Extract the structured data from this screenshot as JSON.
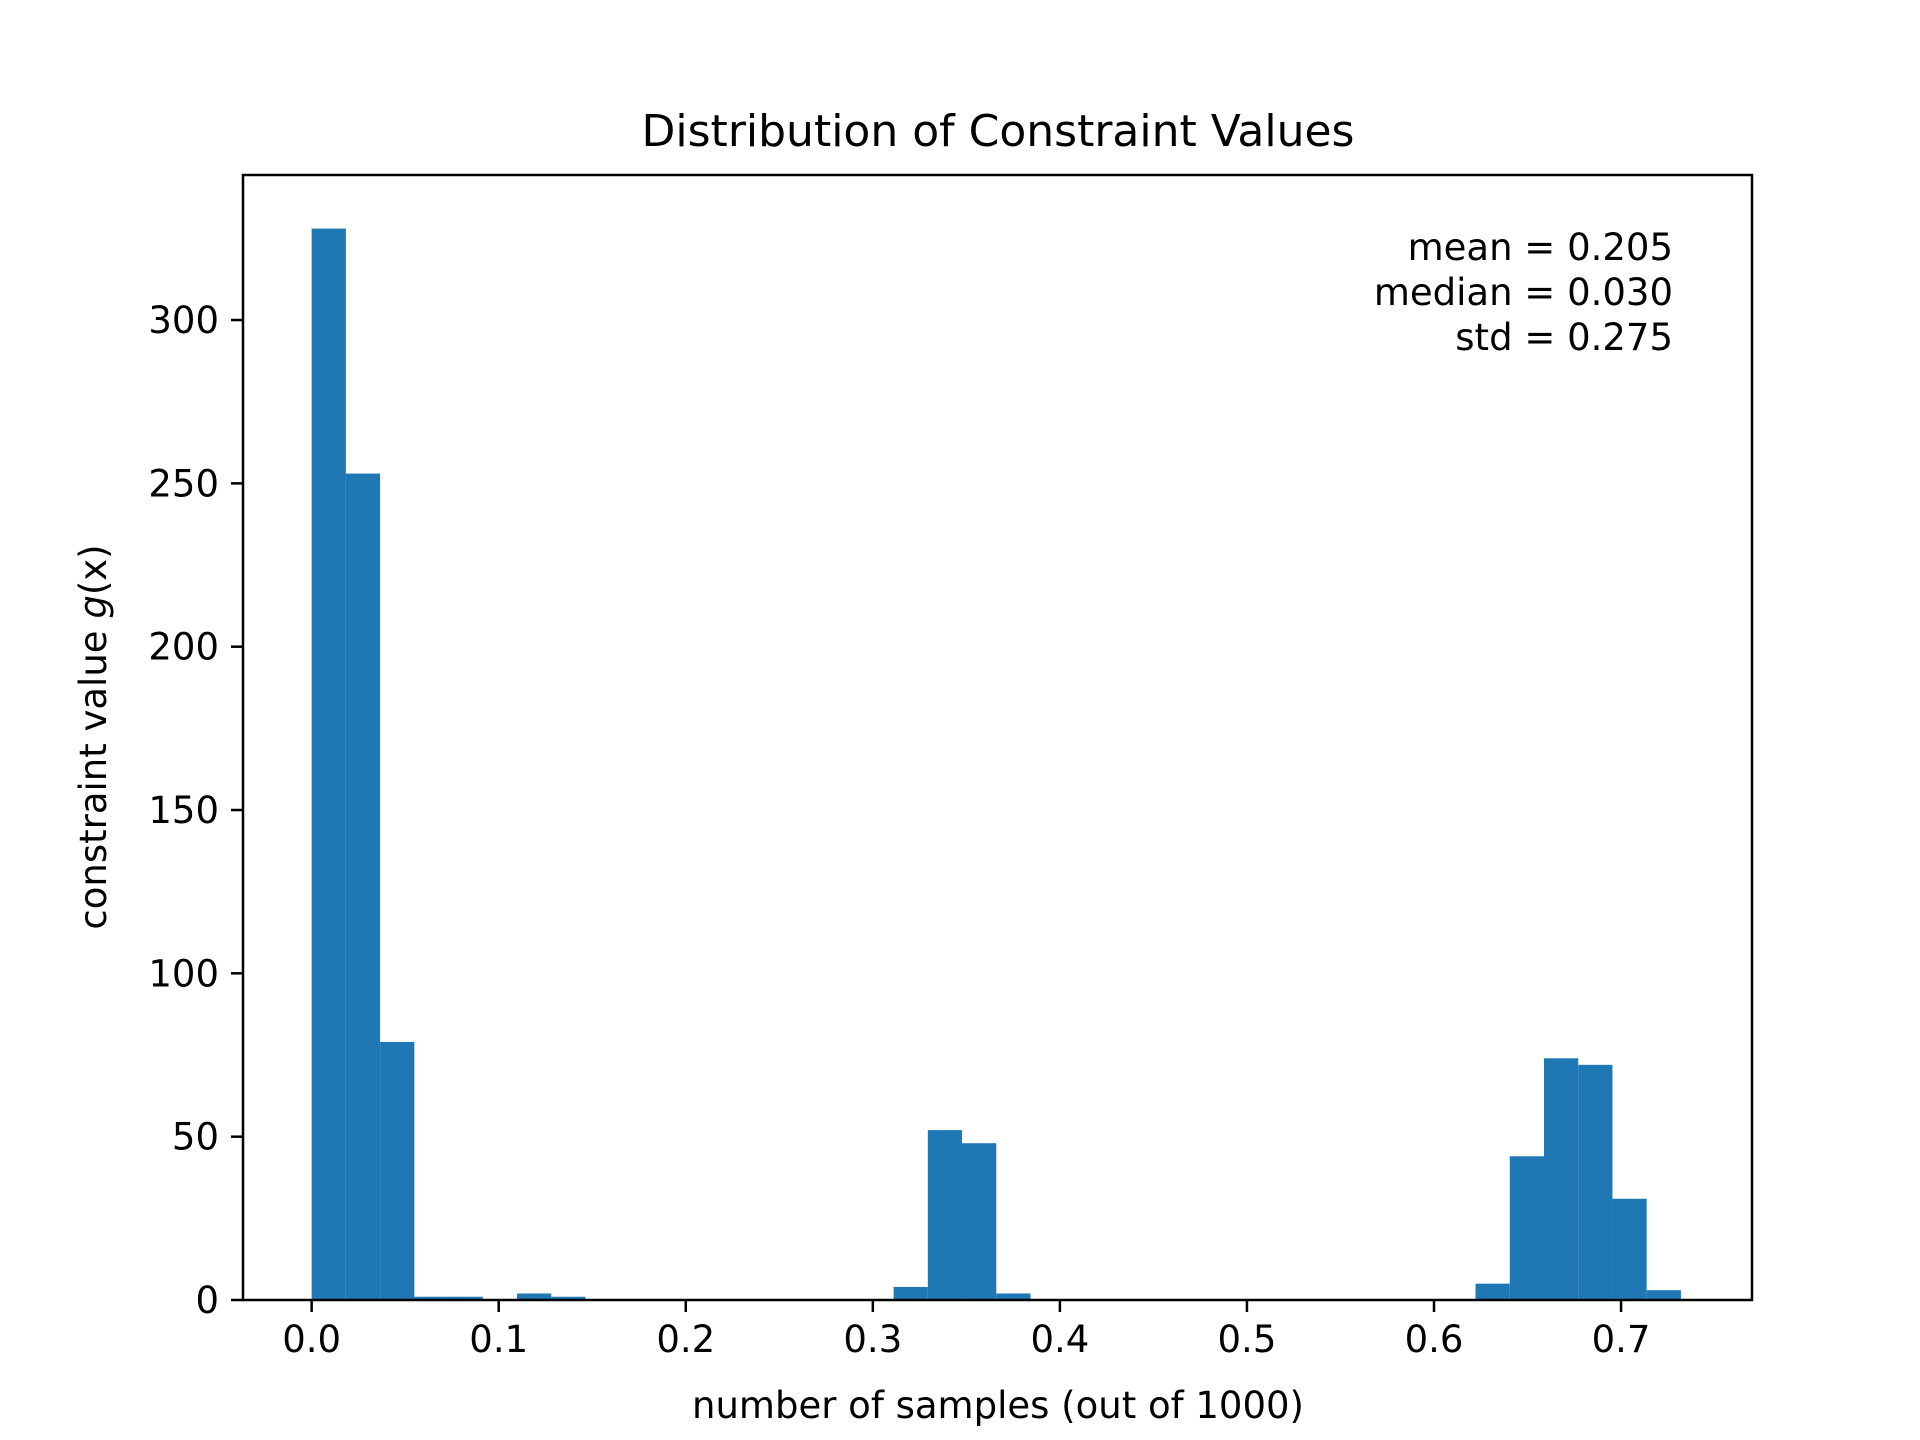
{
  "chart_data": {
    "type": "bar",
    "title": "Distribution of Constraint Values",
    "xlabel": "number of samples (out of 1000)",
    "ylabel_prefix": "constraint value ",
    "ylabel_math": "g",
    "ylabel_suffix": "(x)",
    "xlim": [
      -0.0367,
      0.77
    ],
    "ylim": [
      0,
      344.4
    ],
    "xticks": [
      0.0,
      0.1,
      0.2,
      0.3,
      0.4,
      0.5,
      0.6,
      0.7
    ],
    "xtick_labels": [
      "0.0",
      "0.1",
      "0.2",
      "0.3",
      "0.4",
      "0.5",
      "0.6",
      "0.7"
    ],
    "yticks": [
      0,
      50,
      100,
      150,
      200,
      250,
      300
    ],
    "ytick_labels": [
      "0",
      "50",
      "100",
      "150",
      "200",
      "250",
      "300"
    ],
    "bins": [
      {
        "x0": 0.0,
        "x1": 0.0183,
        "count": 328
      },
      {
        "x0": 0.0183,
        "x1": 0.0366,
        "count": 253
      },
      {
        "x0": 0.0366,
        "x1": 0.0549,
        "count": 79
      },
      {
        "x0": 0.0549,
        "x1": 0.0732,
        "count": 1
      },
      {
        "x0": 0.0732,
        "x1": 0.0915,
        "count": 1
      },
      {
        "x0": 0.1098,
        "x1": 0.1281,
        "count": 2
      },
      {
        "x0": 0.1281,
        "x1": 0.1464,
        "count": 1
      },
      {
        "x0": 0.3111,
        "x1": 0.3294,
        "count": 4
      },
      {
        "x0": 0.3294,
        "x1": 0.3477,
        "count": 52
      },
      {
        "x0": 0.3477,
        "x1": 0.366,
        "count": 48
      },
      {
        "x0": 0.366,
        "x1": 0.3843,
        "count": 2
      },
      {
        "x0": 0.6222,
        "x1": 0.6405,
        "count": 5
      },
      {
        "x0": 0.6405,
        "x1": 0.6588,
        "count": 44
      },
      {
        "x0": 0.6588,
        "x1": 0.6771,
        "count": 74
      },
      {
        "x0": 0.6771,
        "x1": 0.6954,
        "count": 72
      },
      {
        "x0": 0.6954,
        "x1": 0.7137,
        "count": 31
      },
      {
        "x0": 0.7137,
        "x1": 0.732,
        "count": 3
      }
    ],
    "bar_color": "#1f77b4",
    "annotations": [
      "mean = 0.205",
      "median = 0.030",
      "std = 0.275"
    ],
    "annotation_placement": "top-right",
    "grid": false,
    "legend": false
  }
}
